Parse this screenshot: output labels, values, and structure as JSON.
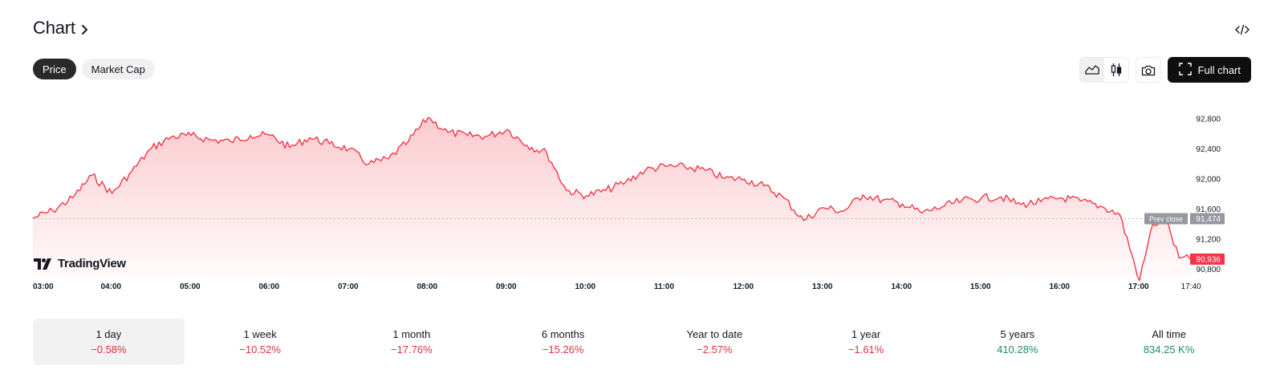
{
  "header": {
    "title": "Chart"
  },
  "tabs": [
    {
      "label": "Price",
      "active": true
    },
    {
      "label": "Market Cap",
      "active": false
    }
  ],
  "toolbar": {
    "full_chart_label": "Full chart",
    "icons": [
      "area-chart-icon",
      "candlestick-icon",
      "camera-icon",
      "fullscreen-icon",
      "embed-code-icon"
    ]
  },
  "branding": {
    "logo_text": "TradingView"
  },
  "colors": {
    "line": "#f23645",
    "accent_dark": "#0f0f0f",
    "negative": "#e0303e",
    "positive": "#1c8f6a"
  },
  "chart_data": {
    "type": "area",
    "x_ticks": [
      "03:00",
      "04:00",
      "05:00",
      "06:00",
      "07:00",
      "08:00",
      "09:00",
      "10:00",
      "11:00",
      "12:00",
      "13:00",
      "14:00",
      "15:00",
      "16:00",
      "17:00",
      "17:40"
    ],
    "y_ticks": [
      "92,800",
      "92,400",
      "92,000",
      "91,600",
      "91,200",
      "90,800"
    ],
    "ylim": [
      90700,
      93100
    ],
    "prev_close": {
      "label": "Prev close",
      "value": 91474,
      "value_label": "91,474"
    },
    "last_price": {
      "value": 90936,
      "value_label": "90,936"
    },
    "series": [
      {
        "x": [
          "03:00",
          "03:15",
          "03:30",
          "03:45",
          "04:00",
          "04:15",
          "04:30",
          "04:45",
          "05:00",
          "05:15",
          "05:30",
          "05:45",
          "06:00",
          "06:15",
          "06:30",
          "06:45",
          "07:00",
          "07:15",
          "07:30",
          "07:45",
          "08:00",
          "08:15",
          "08:30",
          "08:45",
          "09:00",
          "09:15",
          "09:30",
          "09:45",
          "10:00",
          "10:15",
          "10:30",
          "10:45",
          "11:00",
          "11:15",
          "11:30",
          "11:45",
          "12:00",
          "12:15",
          "12:30",
          "12:45",
          "13:00",
          "13:15",
          "13:30",
          "13:45",
          "14:00",
          "14:15",
          "14:30",
          "14:45",
          "15:00",
          "15:15",
          "15:30",
          "15:45",
          "16:00",
          "16:15",
          "16:30",
          "16:45",
          "17:00",
          "17:10",
          "17:20",
          "17:30",
          "17:40"
        ],
        "values": [
          91480,
          91580,
          91750,
          92050,
          91810,
          92100,
          92410,
          92560,
          92580,
          92520,
          92500,
          92580,
          92580,
          92420,
          92550,
          92470,
          92400,
          92200,
          92270,
          92500,
          92820,
          92620,
          92580,
          92570,
          92660,
          92450,
          92350,
          91850,
          91780,
          91850,
          91960,
          92120,
          92170,
          92160,
          92120,
          92010,
          92000,
          91910,
          91750,
          91450,
          91620,
          91570,
          91790,
          91720,
          91670,
          91550,
          91630,
          91710,
          91750,
          91760,
          91660,
          91700,
          91750,
          91710,
          91640,
          91530,
          90650,
          91400,
          91450,
          90950,
          90936
        ]
      }
    ]
  },
  "periods": [
    {
      "label": "1 day",
      "change": "−0.58%",
      "trend": "neg",
      "active": true
    },
    {
      "label": "1 week",
      "change": "−10.52%",
      "trend": "neg",
      "active": false
    },
    {
      "label": "1 month",
      "change": "−17.76%",
      "trend": "neg",
      "active": false
    },
    {
      "label": "6 months",
      "change": "−15.26%",
      "trend": "neg",
      "active": false
    },
    {
      "label": "Year to date",
      "change": "−2.57%",
      "trend": "neg",
      "active": false
    },
    {
      "label": "1 year",
      "change": "−1.61%",
      "trend": "neg",
      "active": false
    },
    {
      "label": "5 years",
      "change": "410.28%",
      "trend": "pos",
      "active": false
    },
    {
      "label": "All time",
      "change": "834.25 K%",
      "trend": "pos",
      "active": false
    }
  ]
}
